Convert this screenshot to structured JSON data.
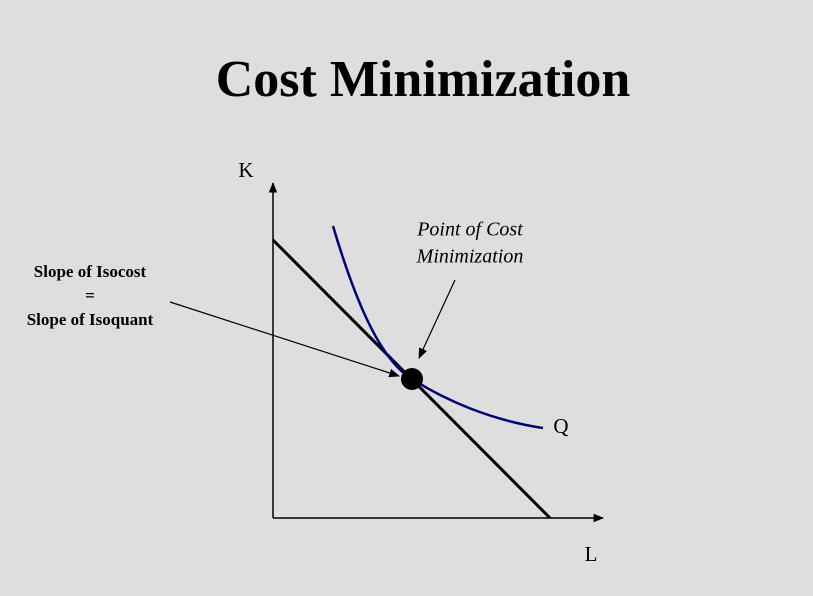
{
  "title": "Cost Minimization",
  "axes": {
    "y_label": "K",
    "x_label": "L"
  },
  "curve_label": "Q",
  "annotations": [
    {
      "lines": [
        "Point of Cost",
        "Minimization"
      ]
    },
    {
      "lines": [
        "Slope of Isocost",
        "=",
        "Slope of Isoquant"
      ]
    }
  ]
}
